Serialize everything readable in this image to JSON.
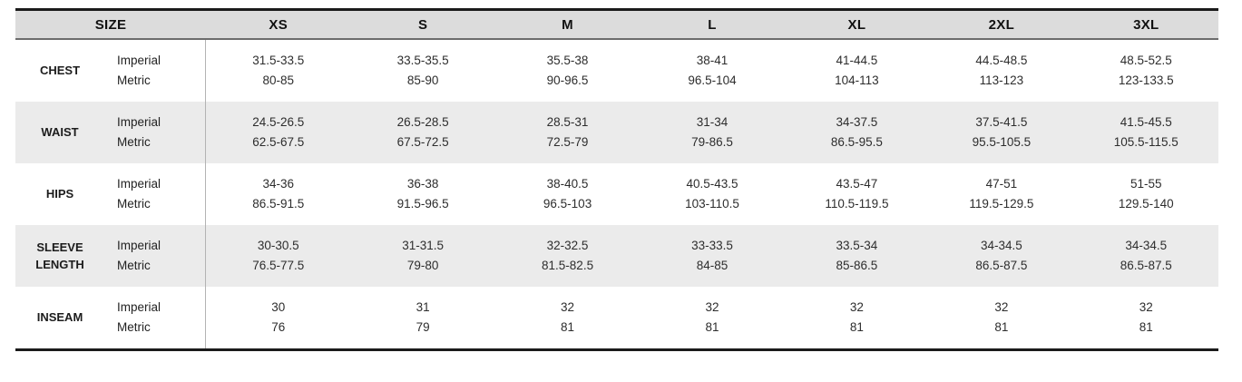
{
  "table": {
    "header": {
      "size_label": "SIZE",
      "sizes": [
        "XS",
        "S",
        "M",
        "L",
        "XL",
        "2XL",
        "3XL"
      ]
    },
    "unit_labels": {
      "imperial": "Imperial",
      "metric": "Metric"
    },
    "rows": [
      {
        "label": "CHEST",
        "imperial": [
          "31.5-33.5",
          "33.5-35.5",
          "35.5-38",
          "38-41",
          "41-44.5",
          "44.5-48.5",
          "48.5-52.5"
        ],
        "metric": [
          "80-85",
          "85-90",
          "90-96.5",
          "96.5-104",
          "104-113",
          "113-123",
          "123-133.5"
        ]
      },
      {
        "label": "WAIST",
        "imperial": [
          "24.5-26.5",
          "26.5-28.5",
          "28.5-31",
          "31-34",
          "34-37.5",
          "37.5-41.5",
          "41.5-45.5"
        ],
        "metric": [
          "62.5-67.5",
          "67.5-72.5",
          "72.5-79",
          "79-86.5",
          "86.5-95.5",
          "95.5-105.5",
          "105.5-115.5"
        ]
      },
      {
        "label": "HIPS",
        "imperial": [
          "34-36",
          "36-38",
          "38-40.5",
          "40.5-43.5",
          "43.5-47",
          "47-51",
          "51-55"
        ],
        "metric": [
          "86.5-91.5",
          "91.5-96.5",
          "96.5-103",
          "103-110.5",
          "110.5-119.5",
          "119.5-129.5",
          "129.5-140"
        ]
      },
      {
        "label": "SLEEVE LENGTH",
        "imperial": [
          "30-30.5",
          "31-31.5",
          "32-32.5",
          "33-33.5",
          "33.5-34",
          "34-34.5",
          "34-34.5"
        ],
        "metric": [
          "76.5-77.5",
          "79-80",
          "81.5-82.5",
          "84-85",
          "85-86.5",
          "86.5-87.5",
          "86.5-87.5"
        ]
      },
      {
        "label": "INSEAM",
        "imperial": [
          "30",
          "31",
          "32",
          "32",
          "32",
          "32",
          "32"
        ],
        "metric": [
          "76",
          "79",
          "81",
          "81",
          "81",
          "81",
          "81"
        ]
      }
    ]
  },
  "colors": {
    "header_background": "#dcdcdc",
    "stripe_background": "#ebebeb",
    "border_dark": "#1b1b1b",
    "header_underline": "#6d6d6d",
    "column_divider": "#b3b3b3"
  }
}
